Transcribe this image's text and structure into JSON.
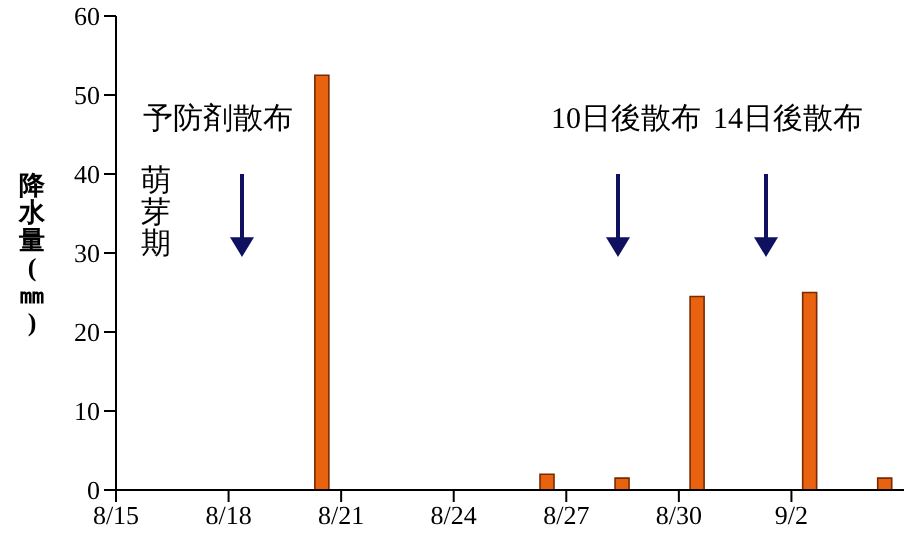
{
  "chart_data": {
    "type": "bar",
    "ylabel": "降水量(㎜)",
    "x": [
      "--08-20T12:00",
      "--08-26T12:00",
      "--08-28T12:00",
      "--08-30T12:00",
      "--09-02T12:00",
      "--09-04T12:00"
    ],
    "values": [
      52.5,
      2,
      1.5,
      24.5,
      25,
      1.5
    ],
    "color": "#e8620f",
    "xlim": [
      "--08-15",
      "--09-05"
    ],
    "xticks": [
      {
        "value": "--08-15",
        "label": "8/15"
      },
      {
        "value": "--08-18",
        "label": "8/18"
      },
      {
        "value": "--08-21",
        "label": "8/21"
      },
      {
        "value": "--08-24",
        "label": "8/24"
      },
      {
        "value": "--08-27",
        "label": "8/27"
      },
      {
        "value": "--08-30",
        "label": "8/30"
      },
      {
        "value": "--09-02",
        "label": "9/2"
      }
    ],
    "ylim": [
      0,
      60
    ],
    "yticks": [
      0,
      10,
      20,
      30,
      40,
      50,
      60
    ],
    "grid": false,
    "annotations": [
      "予防剤散布",
      "萌芽期",
      "10日後散布",
      "14日後散布"
    ]
  }
}
